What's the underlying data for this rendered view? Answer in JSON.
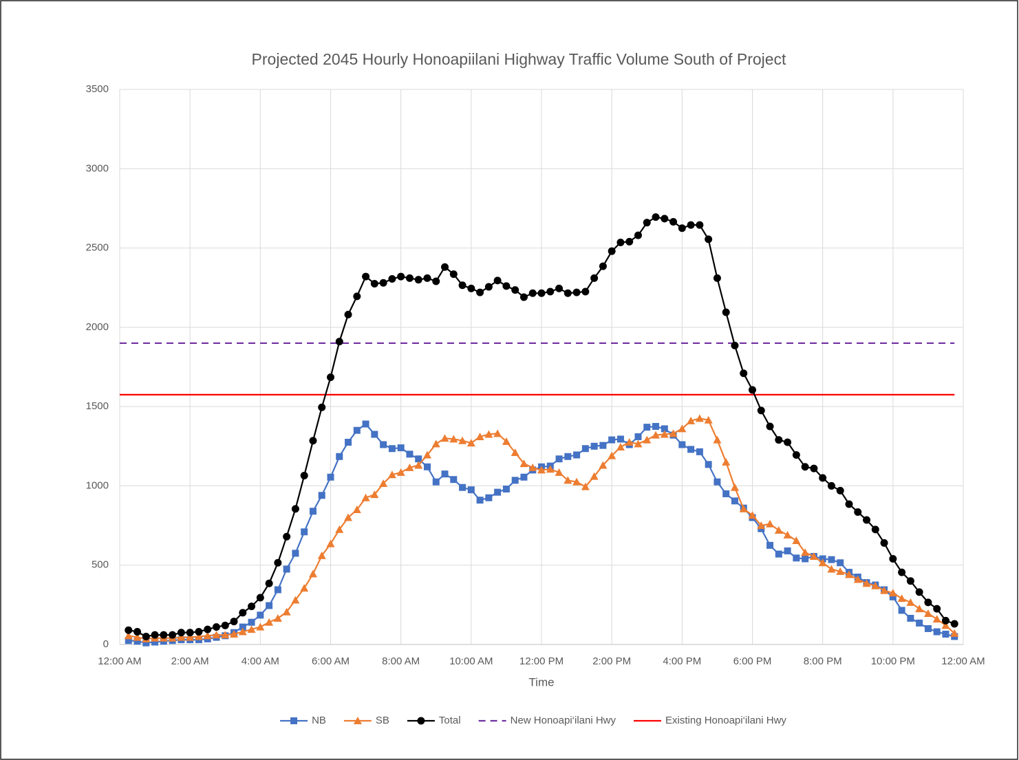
{
  "chart_data": {
    "type": "line",
    "title": "Projected 2045 Hourly Honoapiilani Highway Traffic Volume South of Project",
    "x_label": "Time",
    "x": [
      0.25,
      0.5,
      0.75,
      1,
      1.25,
      1.5,
      1.75,
      2,
      2.25,
      2.5,
      2.75,
      3,
      3.25,
      3.5,
      3.75,
      4,
      4.25,
      4.5,
      4.75,
      5,
      5.25,
      5.5,
      5.75,
      6,
      6.25,
      6.5,
      6.75,
      7,
      7.25,
      7.5,
      7.75,
      8,
      8.25,
      8.5,
      8.75,
      9,
      9.25,
      9.5,
      9.75,
      10,
      10.25,
      10.5,
      10.75,
      11,
      11.25,
      11.5,
      11.75,
      12,
      12.25,
      12.5,
      12.75,
      13,
      13.25,
      13.5,
      13.75,
      14,
      14.25,
      14.5,
      14.75,
      15,
      15.25,
      15.5,
      15.75,
      16,
      16.25,
      16.5,
      16.75,
      17,
      17.25,
      17.5,
      17.75,
      18,
      18.25,
      18.5,
      18.75,
      19,
      19.25,
      19.5,
      19.75,
      20,
      20.25,
      20.5,
      20.75,
      21,
      21.25,
      21.5,
      21.75,
      22,
      22.25,
      22.5,
      22.75,
      23,
      23.25,
      23.5,
      23.75
    ],
    "series": [
      {
        "name": "NB",
        "color": "#4472c4",
        "marker": "square",
        "values": [
          25,
          20,
          10,
          15,
          20,
          25,
          30,
          30,
          30,
          35,
          45,
          55,
          75,
          110,
          140,
          185,
          245,
          345,
          475,
          575,
          710,
          840,
          940,
          1055,
          1185,
          1275,
          1350,
          1390,
          1325,
          1260,
          1235,
          1240,
          1200,
          1170,
          1120,
          1025,
          1075,
          1040,
          990,
          975,
          910,
          925,
          960,
          980,
          1035,
          1055,
          1100,
          1120,
          1125,
          1170,
          1185,
          1195,
          1235,
          1250,
          1255,
          1290,
          1295,
          1260,
          1310,
          1370,
          1375,
          1360,
          1320,
          1260,
          1230,
          1215,
          1135,
          1025,
          950,
          905,
          860,
          800,
          730,
          625,
          570,
          590,
          545,
          540,
          555,
          540,
          535,
          515,
          455,
          425,
          390,
          375,
          345,
          300,
          215,
          165,
          135,
          100,
          80,
          65,
          50
        ]
      },
      {
        "name": "SB",
        "color": "#ed7d31",
        "marker": "triangle",
        "values": [
          55,
          45,
          35,
          40,
          40,
          40,
          45,
          45,
          50,
          55,
          60,
          60,
          65,
          80,
          95,
          110,
          140,
          165,
          205,
          280,
          355,
          445,
          560,
          635,
          725,
          800,
          850,
          925,
          945,
          1015,
          1070,
          1085,
          1115,
          1130,
          1195,
          1265,
          1300,
          1295,
          1285,
          1270,
          1310,
          1325,
          1330,
          1280,
          1210,
          1140,
          1115,
          1100,
          1105,
          1085,
          1035,
          1025,
          995,
          1060,
          1130,
          1190,
          1245,
          1275,
          1265,
          1290,
          1320,
          1325,
          1330,
          1360,
          1410,
          1425,
          1415,
          1290,
          1150,
          990,
          855,
          815,
          750,
          760,
          720,
          690,
          655,
          580,
          555,
          515,
          475,
          460,
          440,
          410,
          385,
          370,
          340,
          325,
          290,
          265,
          225,
          195,
          160,
          120,
          70
        ]
      },
      {
        "name": "Total",
        "color": "#000000",
        "marker": "circle",
        "values": [
          90,
          80,
          50,
          60,
          60,
          60,
          75,
          75,
          80,
          95,
          110,
          120,
          145,
          200,
          240,
          295,
          385,
          515,
          680,
          855,
          1065,
          1285,
          1495,
          1685,
          1910,
          2080,
          2195,
          2320,
          2275,
          2280,
          2305,
          2320,
          2310,
          2300,
          2310,
          2290,
          2380,
          2335,
          2265,
          2245,
          2220,
          2255,
          2295,
          2260,
          2235,
          2190,
          2215,
          2215,
          2225,
          2245,
          2215,
          2220,
          2225,
          2310,
          2385,
          2480,
          2535,
          2540,
          2580,
          2660,
          2695,
          2685,
          2665,
          2625,
          2645,
          2645,
          2555,
          2310,
          2095,
          1885,
          1710,
          1605,
          1475,
          1375,
          1290,
          1275,
          1195,
          1120,
          1110,
          1050,
          1000,
          970,
          885,
          835,
          785,
          725,
          640,
          540,
          455,
          400,
          330,
          265,
          225,
          150,
          130
        ]
      }
    ],
    "reference_lines": [
      {
        "name": "New Honoapi‘ilani Hwy",
        "color": "#7030a0",
        "dashed": true,
        "value": 1900
      },
      {
        "name": "Existing Honoapi‘ilani Hwy",
        "color": "#ff0000",
        "dashed": false,
        "value": 1575
      }
    ],
    "xlim": [
      0,
      24
    ],
    "xticks": [
      {
        "value": 0,
        "label": "12:00 AM"
      },
      {
        "value": 2,
        "label": "2:00 AM"
      },
      {
        "value": 4,
        "label": "4:00 AM"
      },
      {
        "value": 6,
        "label": "6:00 AM"
      },
      {
        "value": 8,
        "label": "8:00 AM"
      },
      {
        "value": 10,
        "label": "10:00 AM"
      },
      {
        "value": 12,
        "label": "12:00 PM"
      },
      {
        "value": 14,
        "label": "2:00 PM"
      },
      {
        "value": 16,
        "label": "4:00 PM"
      },
      {
        "value": 18,
        "label": "6:00 PM"
      },
      {
        "value": 20,
        "label": "8:00 PM"
      },
      {
        "value": 22,
        "label": "10:00 PM"
      },
      {
        "value": 24,
        "label": "12:00 AM"
      }
    ],
    "ylim": [
      0,
      3500
    ],
    "yticks": [
      0,
      500,
      1000,
      1500,
      2000,
      2500,
      3000,
      3500
    ],
    "grid": true,
    "legend": "bottom"
  }
}
